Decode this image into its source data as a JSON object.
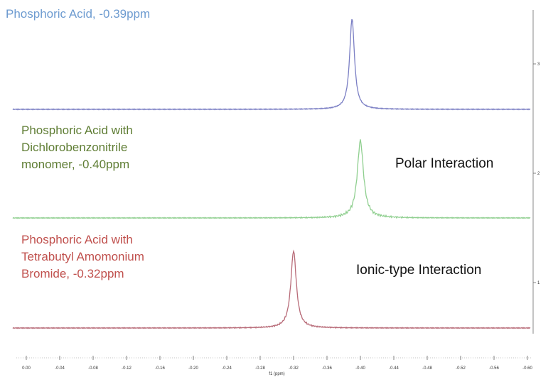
{
  "chart_data": {
    "type": "line",
    "x_axis": {
      "label": "f1 (ppm)",
      "min": 0.0,
      "max": -0.6,
      "reversed": false,
      "ticks": [
        "0.00",
        "-0.04",
        "-0.08",
        "-0.12",
        "-0.16",
        "-0.20",
        "-0.24",
        "-0.28",
        "-0.32",
        "-0.36",
        "-0.40",
        "-0.44",
        "-0.48",
        "-0.52",
        "-0.56",
        "-0.60"
      ]
    },
    "y_axis": {
      "ticks": [
        "3",
        "2",
        "1"
      ]
    },
    "series": [
      {
        "label_lines": [
          "Phosphoric Acid, -0.39ppm"
        ],
        "peak_ppm": -0.39,
        "peak_height": 1.0,
        "width": 0.0035,
        "color": "#7b7fc4",
        "label_color": "#6d9bd0",
        "tick": "3",
        "ripple": 0.0
      },
      {
        "label_lines": [
          "Phosphoric Acid with",
          "Dichlorobenzonitrile",
          "monomer, -0.40ppm"
        ],
        "peak_ppm": -0.4,
        "peak_height": 0.85,
        "width": 0.0045,
        "color": "#8fcf8f",
        "label_color": "#5f7d34",
        "tick": "2",
        "ripple": 0.02
      },
      {
        "label_lines": [
          "Phosphoric Acid with",
          "Tetrabutyl Amomonium",
          "Bromide, -0.32ppm"
        ],
        "peak_ppm": -0.32,
        "peak_height": 0.85,
        "width": 0.004,
        "color": "#b86b78",
        "label_color": "#c0504d",
        "tick": "1",
        "ripple": 0.01
      }
    ],
    "annotations": [
      "Polar Interaction",
      "Ionic-type Interaction"
    ],
    "grid": false,
    "legend": "none"
  }
}
